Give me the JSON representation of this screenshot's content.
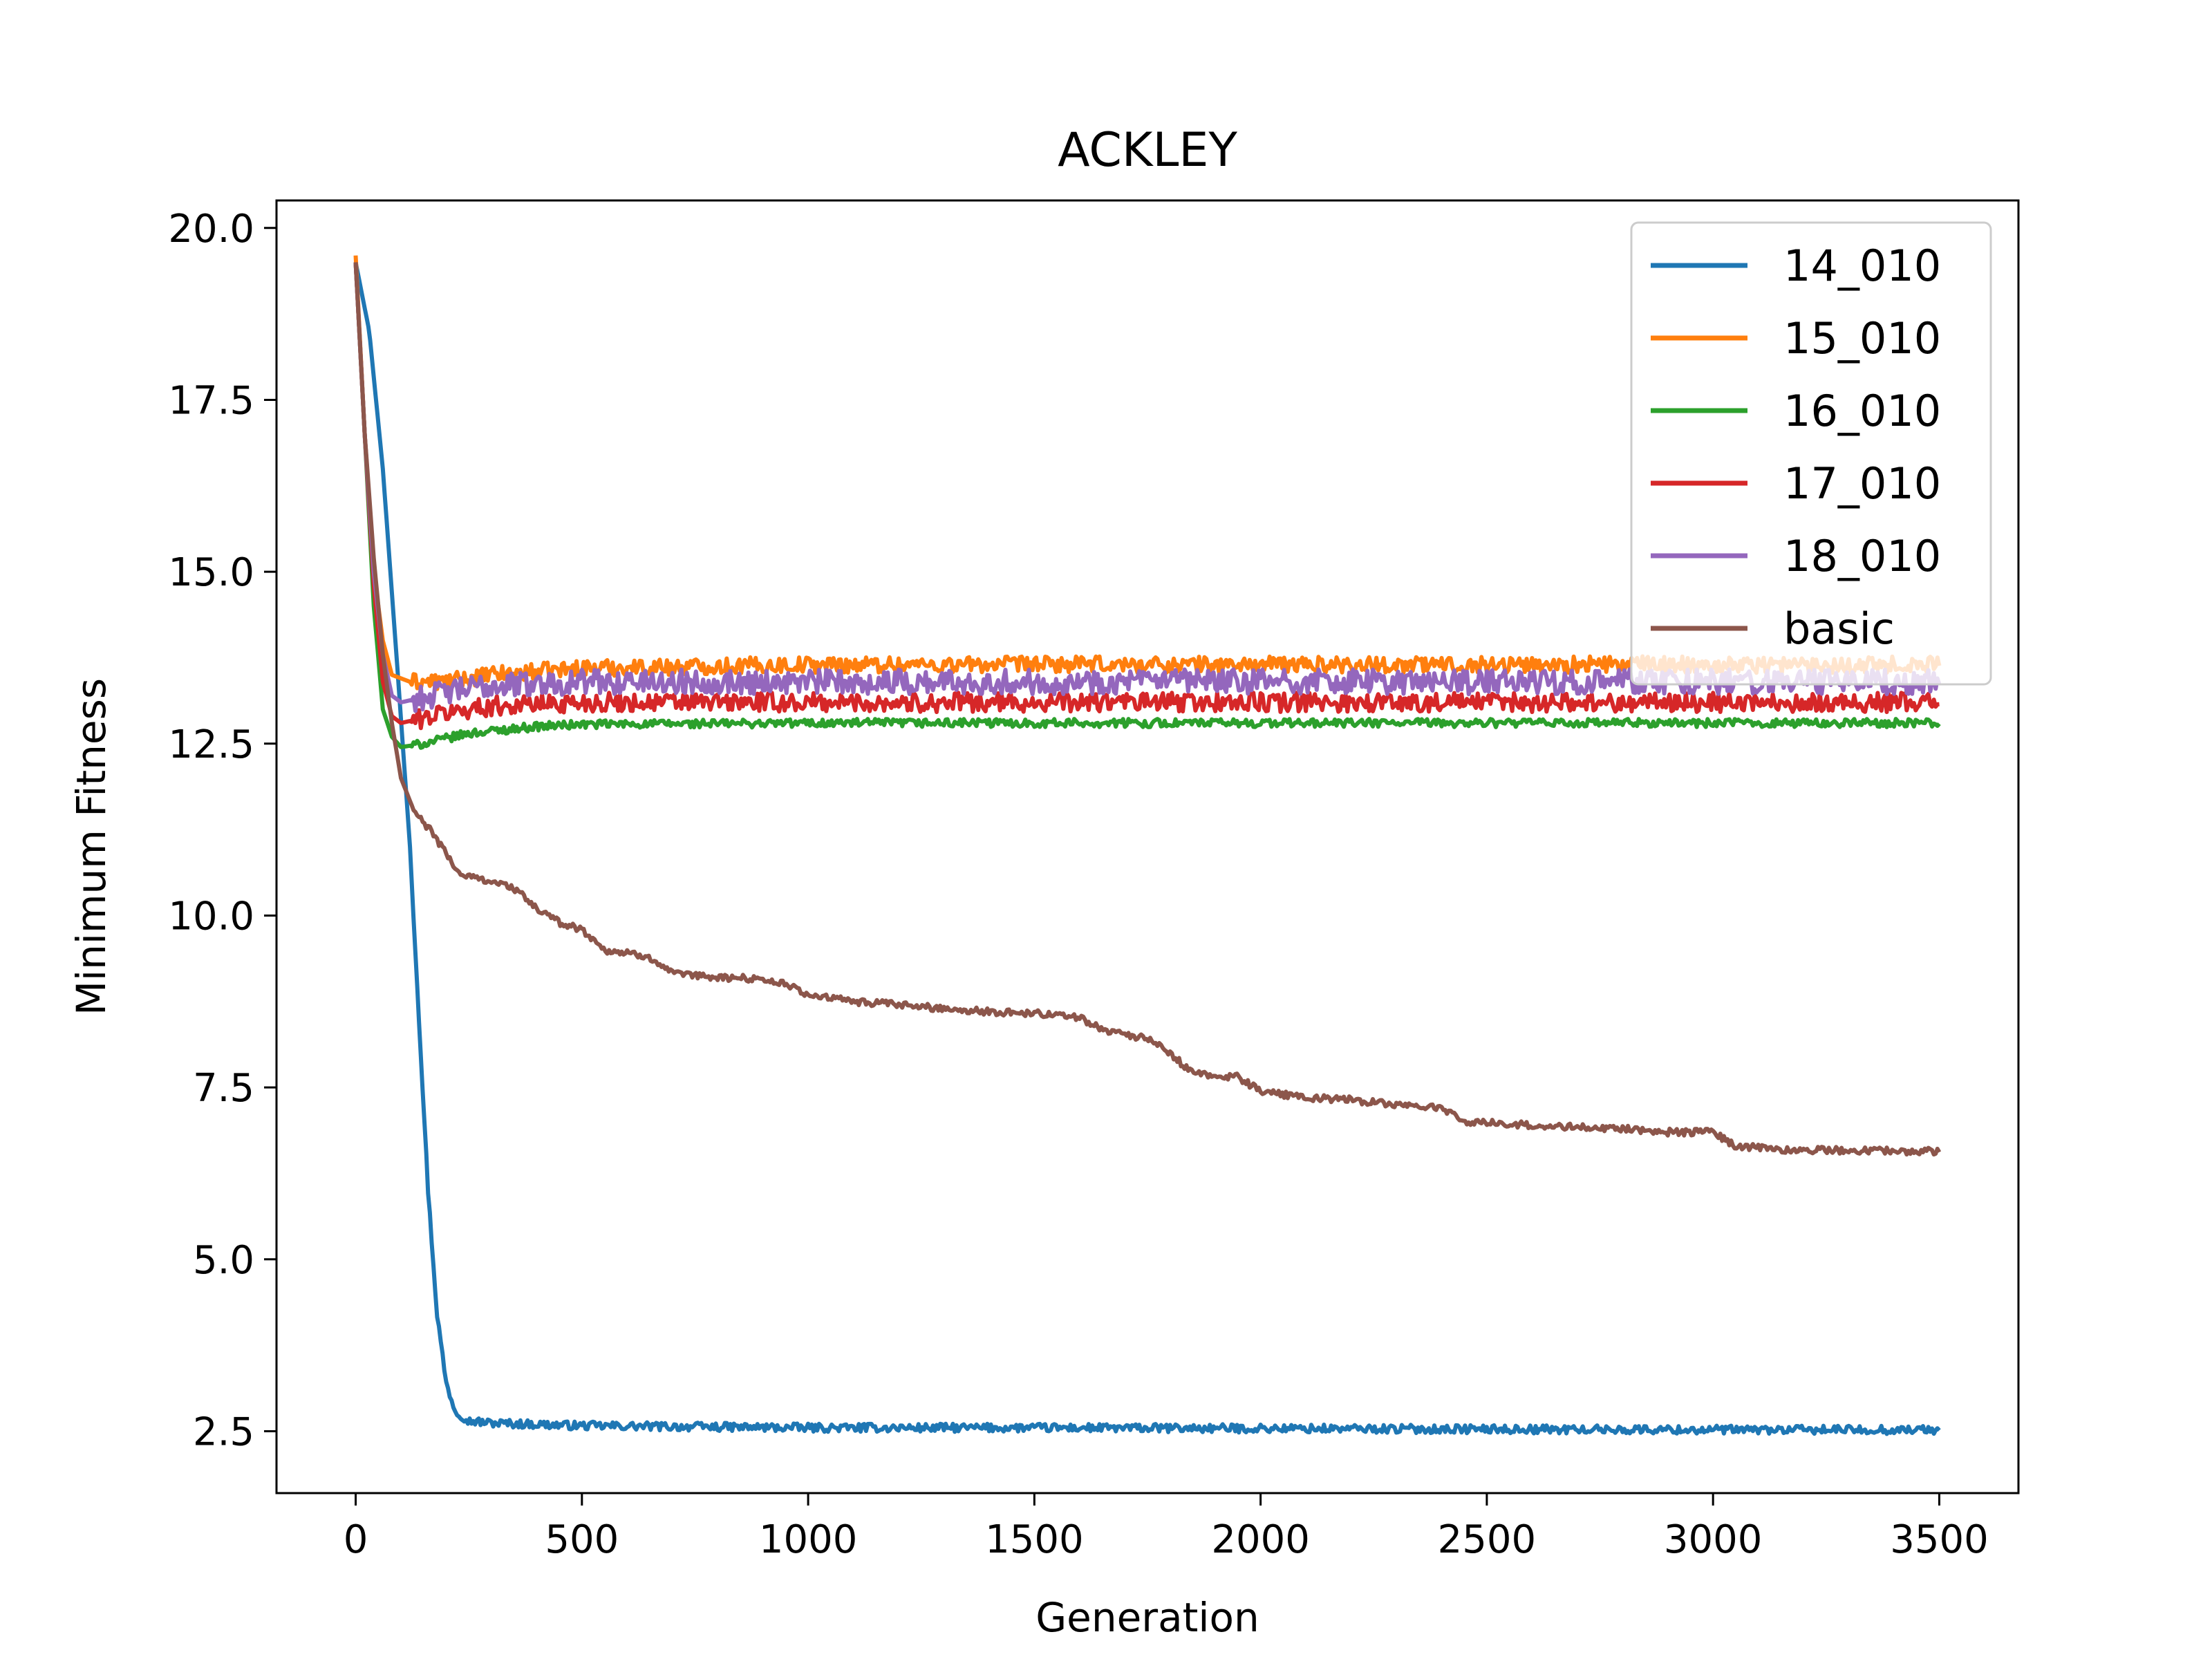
{
  "chart_data": {
    "type": "line",
    "title": "ACKLEY",
    "xlabel": "Generation",
    "ylabel": "Minimum Fitness",
    "xlim": [
      -175,
      3675
    ],
    "ylim": [
      1.6,
      20.4
    ],
    "xticks": [
      0,
      500,
      1000,
      1500,
      2000,
      2500,
      3000,
      3500
    ],
    "yticks": [
      2.5,
      5.0,
      7.5,
      10.0,
      12.5,
      15.0,
      17.5,
      20.0
    ],
    "xtick_labels": [
      "0",
      "500",
      "1000",
      "1500",
      "2000",
      "2500",
      "3000",
      "3500"
    ],
    "ytick_labels": [
      "2.5",
      "5.0",
      "7.5",
      "10.0",
      "12.5",
      "15.0",
      "17.5",
      "20.0"
    ],
    "grid": false,
    "legend_position": "top-right",
    "series": [
      {
        "name": "14_010",
        "color": "#1f77b4",
        "oscillation": 0.06,
        "points": [
          [
            0,
            19.5
          ],
          [
            30,
            18.5
          ],
          [
            60,
            16.5
          ],
          [
            90,
            13.8
          ],
          [
            120,
            11.0
          ],
          [
            140,
            8.5
          ],
          [
            160,
            6.0
          ],
          [
            180,
            4.2
          ],
          [
            200,
            3.2
          ],
          [
            220,
            2.8
          ],
          [
            250,
            2.65
          ],
          [
            300,
            2.62
          ],
          [
            500,
            2.58
          ],
          [
            1000,
            2.55
          ],
          [
            1500,
            2.55
          ],
          [
            2000,
            2.54
          ],
          [
            2500,
            2.53
          ],
          [
            3000,
            2.52
          ],
          [
            3500,
            2.52
          ]
        ]
      },
      {
        "name": "15_010",
        "color": "#ff7f0e",
        "oscillation": 0.12,
        "points": [
          [
            0,
            19.6
          ],
          [
            20,
            17.0
          ],
          [
            40,
            15.0
          ],
          [
            60,
            14.0
          ],
          [
            80,
            13.5
          ],
          [
            120,
            13.4
          ],
          [
            200,
            13.4
          ],
          [
            300,
            13.5
          ],
          [
            500,
            13.6
          ],
          [
            1000,
            13.65
          ],
          [
            2000,
            13.65
          ],
          [
            3000,
            13.65
          ],
          [
            3500,
            13.65
          ]
        ]
      },
      {
        "name": "16_010",
        "color": "#2ca02c",
        "oscillation": 0.06,
        "points": [
          [
            0,
            19.5
          ],
          [
            20,
            17.0
          ],
          [
            40,
            14.5
          ],
          [
            60,
            13.0
          ],
          [
            80,
            12.6
          ],
          [
            100,
            12.45
          ],
          [
            150,
            12.5
          ],
          [
            250,
            12.65
          ],
          [
            400,
            12.75
          ],
          [
            500,
            12.78
          ],
          [
            1000,
            12.8
          ],
          [
            2000,
            12.8
          ],
          [
            3000,
            12.8
          ],
          [
            3500,
            12.8
          ]
        ]
      },
      {
        "name": "17_010",
        "color": "#d62728",
        "oscillation": 0.14,
        "points": [
          [
            0,
            19.5
          ],
          [
            20,
            17.0
          ],
          [
            40,
            14.8
          ],
          [
            60,
            13.4
          ],
          [
            80,
            12.9
          ],
          [
            100,
            12.8
          ],
          [
            200,
            12.95
          ],
          [
            300,
            13.05
          ],
          [
            500,
            13.1
          ],
          [
            1000,
            13.1
          ],
          [
            2000,
            13.1
          ],
          [
            3000,
            13.1
          ],
          [
            3500,
            13.1
          ]
        ]
      },
      {
        "name": "18_010",
        "color": "#9467bd",
        "oscillation": 0.18,
        "points": [
          [
            0,
            19.5
          ],
          [
            20,
            17.0
          ],
          [
            40,
            15.0
          ],
          [
            60,
            13.8
          ],
          [
            80,
            13.2
          ],
          [
            100,
            13.1
          ],
          [
            200,
            13.25
          ],
          [
            300,
            13.35
          ],
          [
            500,
            13.4
          ],
          [
            1000,
            13.4
          ],
          [
            2000,
            13.4
          ],
          [
            3000,
            13.4
          ],
          [
            3500,
            13.4
          ]
        ]
      },
      {
        "name": "basic",
        "color": "#8c564b",
        "oscillation": 0.05,
        "points": [
          [
            0,
            19.5
          ],
          [
            20,
            17.0
          ],
          [
            40,
            15.2
          ],
          [
            60,
            13.8
          ],
          [
            80,
            12.8
          ],
          [
            100,
            12.0
          ],
          [
            130,
            11.5
          ],
          [
            170,
            11.2
          ],
          [
            200,
            10.9
          ],
          [
            230,
            10.6
          ],
          [
            300,
            10.5
          ],
          [
            350,
            10.4
          ],
          [
            400,
            10.1
          ],
          [
            450,
            9.9
          ],
          [
            500,
            9.8
          ],
          [
            550,
            9.5
          ],
          [
            650,
            9.4
          ],
          [
            700,
            9.15
          ],
          [
            800,
            9.1
          ],
          [
            900,
            9.08
          ],
          [
            950,
            9.0
          ],
          [
            1000,
            8.85
          ],
          [
            1100,
            8.75
          ],
          [
            1200,
            8.7
          ],
          [
            1300,
            8.65
          ],
          [
            1400,
            8.6
          ],
          [
            1500,
            8.58
          ],
          [
            1600,
            8.52
          ],
          [
            1650,
            8.35
          ],
          [
            1750,
            8.2
          ],
          [
            1800,
            8.0
          ],
          [
            1850,
            7.7
          ],
          [
            1950,
            7.65
          ],
          [
            2000,
            7.45
          ],
          [
            2100,
            7.35
          ],
          [
            2200,
            7.32
          ],
          [
            2300,
            7.25
          ],
          [
            2400,
            7.2
          ],
          [
            2450,
            7.0
          ],
          [
            2600,
            6.95
          ],
          [
            2700,
            6.92
          ],
          [
            2800,
            6.9
          ],
          [
            2900,
            6.85
          ],
          [
            3000,
            6.85
          ],
          [
            3050,
            6.65
          ],
          [
            3150,
            6.6
          ],
          [
            3300,
            6.58
          ],
          [
            3500,
            6.57
          ]
        ]
      }
    ]
  }
}
